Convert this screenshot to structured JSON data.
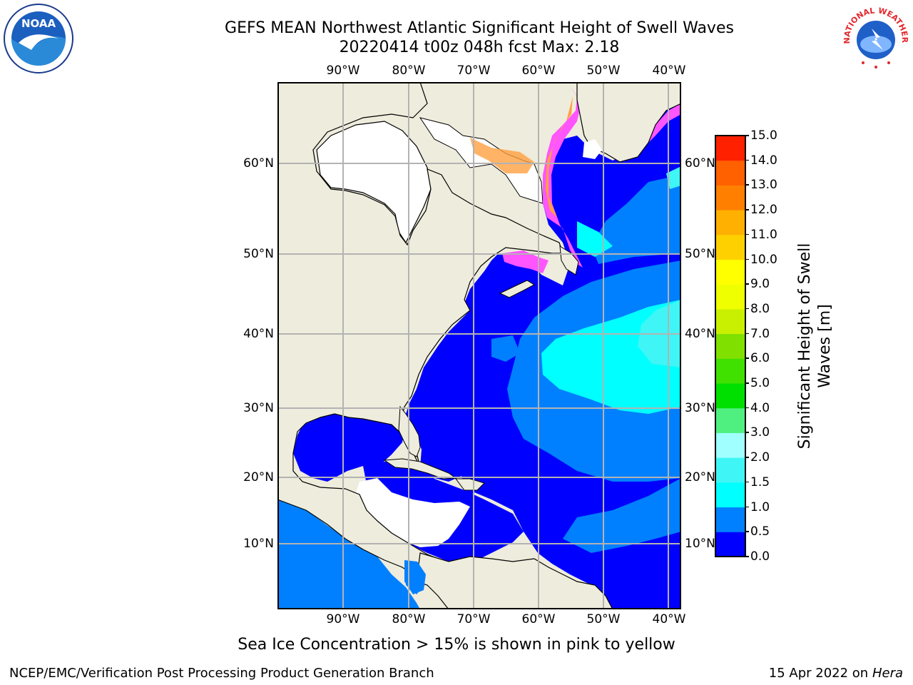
{
  "title": {
    "line1": "GEFS MEAN Northwest Atlantic Significant Height of Swell Waves",
    "line2": "20220414 t00z 048h fcst   Max: 2.18"
  },
  "map": {
    "lon_labels": [
      "90°W",
      "80°W",
      "70°W",
      "60°W",
      "50°W",
      "40°W"
    ],
    "lat_labels": [
      "60°N",
      "50°N",
      "40°N",
      "30°N",
      "20°N",
      "10°N"
    ],
    "colors": {
      "land": "#eeecdc",
      "sea_low": "#0000ff",
      "sea_mid": "#0080ff",
      "sea_high": "#00ffff",
      "sea_2": "#3cf5f5",
      "ice": "#ffffff",
      "ice_edge": "#ff55ff",
      "ice_orange": "#ffa040",
      "grid": "#b3b3b3",
      "coast": "#000000"
    }
  },
  "colorbar": {
    "label": "Significant Height of Swell Waves [m]",
    "ticks": [
      "0.0",
      "0.5",
      "1.0",
      "1.5",
      "2.0",
      "3.0",
      "4.0",
      "5.0",
      "6.0",
      "7.0",
      "8.0",
      "9.0",
      "10.0",
      "11.0",
      "12.0",
      "13.0",
      "14.0",
      "15.0"
    ],
    "colors": [
      "#0000ff",
      "#0080ff",
      "#00ffff",
      "#3ff5f5",
      "#a0ffff",
      "#50f080",
      "#00e000",
      "#40e000",
      "#80e000",
      "#c8f000",
      "#f0ff00",
      "#ffff00",
      "#ffd000",
      "#ffb000",
      "#ff8000",
      "#ff6000",
      "#ff2000"
    ]
  },
  "subtitle": "Sea Ice Concentration > 15% is shown in pink to yellow",
  "footer": {
    "left": "NCEP/EMC/Verification Post Processing Product Generation Branch",
    "right_date": "15 Apr 2022 on ",
    "right_host": "Hera"
  },
  "logos": {
    "noaa": "NOAA",
    "nws": "NATIONAL WEATHER SERVICE"
  }
}
